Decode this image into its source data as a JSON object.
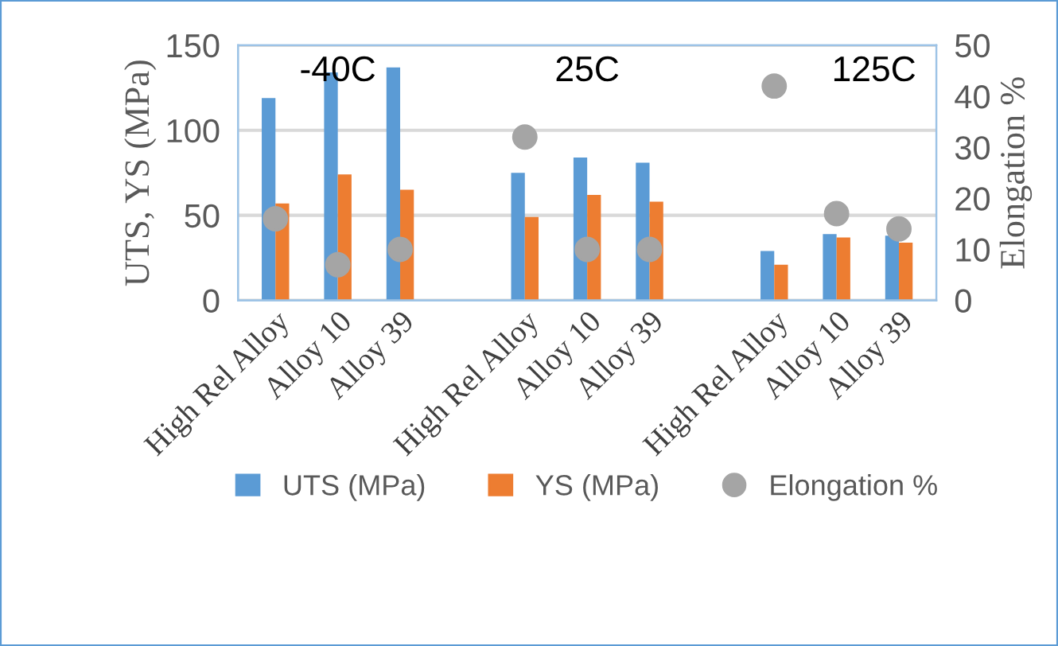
{
  "chart_data": {
    "type": "bar",
    "ylabel": "UTS, YS (MPa)",
    "y2label": "Elongation %",
    "categories": [
      "High Rel Alloy",
      "Alloy 10",
      "Alloy 39",
      null,
      "High Rel Alloy",
      "Alloy 10",
      "Alloy 39",
      null,
      "High Rel Alloy",
      "Alloy 10",
      "Alloy 39"
    ],
    "series": [
      {
        "name": "UTS (MPa)",
        "color": "#5b9bd5",
        "values": [
          119,
          134,
          137,
          null,
          75,
          84,
          81,
          null,
          29,
          39,
          38
        ]
      },
      {
        "name": "YS (MPa)",
        "color": "#ed7d31",
        "values": [
          57,
          74,
          65,
          null,
          49,
          62,
          58,
          null,
          21,
          37,
          34
        ]
      },
      {
        "name": "Elongation %",
        "type": "scatter",
        "axis": "y2",
        "color": "#a5a5a5",
        "marker": "circle",
        "values": [
          16,
          7,
          10,
          null,
          32,
          10,
          10,
          null,
          42,
          17,
          14
        ]
      }
    ],
    "ylim": [
      0,
      150
    ],
    "yticks": [
      0,
      50,
      100,
      150
    ],
    "y2lim": [
      0,
      50
    ],
    "y2ticks": [
      0,
      10,
      20,
      30,
      40,
      50
    ],
    "grid": "y",
    "legend": "bottom",
    "annotations": [
      "-40C",
      "25C",
      "125C"
    ]
  }
}
